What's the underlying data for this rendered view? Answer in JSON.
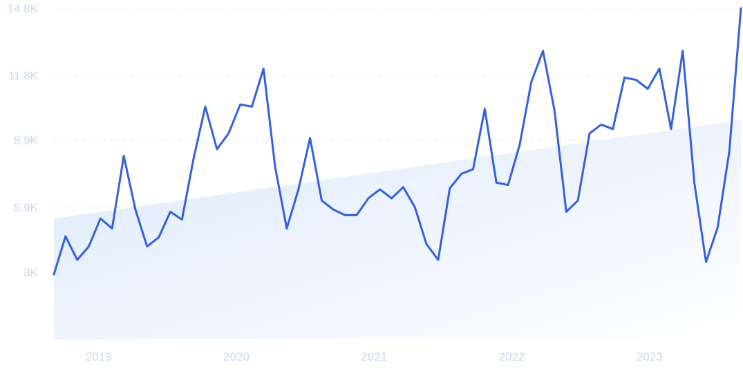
{
  "chart_data": {
    "type": "line",
    "title": "",
    "xlabel": "",
    "ylabel": "",
    "grid": true,
    "legend": "none",
    "colors": {
      "line": "#3460dc",
      "trend_fill_start": "#dce9fb",
      "trend_fill_end": "#ffffff",
      "tick_label": "#c9d6ee",
      "grid": "#e6ebf3"
    },
    "y_ticks": [
      {
        "value": 3000,
        "label": "3K"
      },
      {
        "value": 5900,
        "label": "5.9K"
      },
      {
        "value": 8900,
        "label": "8.9K"
      },
      {
        "value": 11800,
        "label": "11.8K"
      },
      {
        "value": 14800,
        "label": "14.8K"
      }
    ],
    "x_ticks": [
      {
        "value": 2019.0,
        "label": "2019"
      },
      {
        "value": 2020.0,
        "label": "2020"
      },
      {
        "value": 2021.0,
        "label": "2021"
      },
      {
        "value": 2022.0,
        "label": "2022"
      },
      {
        "value": 2023.0,
        "label": "2023"
      }
    ],
    "xlim": [
      2018.84,
      2023.83
    ],
    "ylim": [
      0,
      14800
    ],
    "trend": {
      "start": 5400,
      "end": 9800
    },
    "series": [
      {
        "values": [
          2900,
          4600,
          3550,
          4150,
          5400,
          4950,
          8200,
          5800,
          4150,
          4550,
          5700,
          5350,
          8100,
          10400,
          8500,
          9200,
          10500,
          10400,
          12100,
          7700,
          4950,
          6700,
          9000,
          6200,
          5800,
          5550,
          5550,
          6300,
          6700,
          6300,
          6800,
          5900,
          4250,
          3550,
          6750,
          7400,
          7600,
          10300,
          7000,
          6900,
          8700,
          11500,
          12900,
          10200,
          5700,
          6200,
          9200,
          9600,
          9400,
          11700,
          11600,
          11200,
          12100,
          9400,
          12900,
          7000,
          3450,
          5000,
          8400,
          14800
        ]
      }
    ]
  }
}
